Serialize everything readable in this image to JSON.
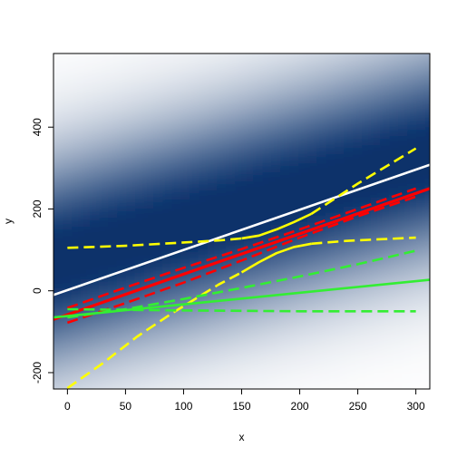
{
  "chart_data": {
    "type": "scatter",
    "title": "",
    "xlabel": "x",
    "ylabel": "y",
    "xlim": [
      -12,
      312
    ],
    "ylim": [
      -240,
      580
    ],
    "x_ticks": [
      0,
      50,
      100,
      150,
      200,
      250,
      300
    ],
    "y_ticks": [
      -200,
      0,
      200,
      400
    ],
    "grid": false,
    "legend": "none",
    "density_background": {
      "color_low": "#ffffff",
      "color_high": "#08306b",
      "trend": {
        "intercept": 200,
        "slope": 0.8
      }
    },
    "series": [
      {
        "role": "white-fit",
        "color": "#ffffff",
        "style": "solid",
        "points": [
          [
            -12,
            -10
          ],
          [
            312,
            308
          ]
        ]
      },
      {
        "role": "red-fit",
        "color": "#ff0000",
        "style": "solid",
        "points": [
          [
            -12,
            -70
          ],
          [
            312,
            250
          ]
        ]
      },
      {
        "role": "red-band-upper",
        "color": "#ff0000",
        "style": "dashed",
        "points": [
          [
            0,
            -42
          ],
          [
            50,
            8
          ],
          [
            100,
            56
          ],
          [
            150,
            102
          ],
          [
            200,
            150
          ],
          [
            250,
            200
          ],
          [
            300,
            250
          ]
        ]
      },
      {
        "role": "red-band-lower",
        "color": "#ff0000",
        "style": "dashed",
        "points": [
          [
            0,
            -78
          ],
          [
            50,
            -30
          ],
          [
            100,
            20
          ],
          [
            150,
            74
          ],
          [
            200,
            130
          ],
          [
            250,
            182
          ],
          [
            300,
            230
          ]
        ]
      },
      {
        "role": "yellow-upper",
        "color": "#ffff00",
        "style": "dashed",
        "points": [
          [
            0,
            105
          ],
          [
            50,
            110
          ],
          [
            100,
            118
          ],
          [
            130,
            123
          ],
          [
            150,
            128
          ]
        ]
      },
      {
        "role": "yellow-upper",
        "color": "#ffff00",
        "style": "solid",
        "points": [
          [
            150,
            128
          ],
          [
            165,
            135
          ],
          [
            180,
            150
          ],
          [
            195,
            168
          ],
          [
            210,
            188
          ]
        ]
      },
      {
        "role": "yellow-upper",
        "color": "#ffff00",
        "style": "dashed",
        "points": [
          [
            210,
            188
          ],
          [
            230,
            225
          ],
          [
            250,
            262
          ],
          [
            275,
            305
          ],
          [
            300,
            348
          ]
        ]
      },
      {
        "role": "yellow-lower",
        "color": "#ffff00",
        "style": "dashed",
        "points": [
          [
            0,
            -238
          ],
          [
            30,
            -178
          ],
          [
            60,
            -112
          ],
          [
            90,
            -55
          ],
          [
            110,
            -20
          ],
          [
            130,
            15
          ],
          [
            150,
            45
          ]
        ]
      },
      {
        "role": "yellow-lower",
        "color": "#ffff00",
        "style": "solid",
        "points": [
          [
            150,
            45
          ],
          [
            165,
            70
          ],
          [
            180,
            92
          ],
          [
            195,
            107
          ],
          [
            210,
            115
          ]
        ]
      },
      {
        "role": "yellow-lower",
        "color": "#ffff00",
        "style": "dashed",
        "points": [
          [
            210,
            115
          ],
          [
            240,
            122
          ],
          [
            270,
            126
          ],
          [
            300,
            130
          ]
        ]
      },
      {
        "role": "green-fit",
        "color": "#33ee33",
        "style": "solid",
        "points": [
          [
            -12,
            -65
          ],
          [
            312,
            27
          ]
        ]
      },
      {
        "role": "green-band-upper",
        "color": "#33ee33",
        "style": "dashed",
        "points": [
          [
            0,
            -65
          ],
          [
            50,
            -45
          ],
          [
            100,
            -20
          ],
          [
            150,
            7
          ],
          [
            200,
            35
          ],
          [
            250,
            65
          ],
          [
            300,
            98
          ]
        ]
      },
      {
        "role": "green-band-lower",
        "color": "#33ee33",
        "style": "dashed",
        "points": [
          [
            0,
            -45
          ],
          [
            100,
            -48
          ],
          [
            200,
            -50
          ],
          [
            300,
            -50
          ]
        ]
      }
    ]
  }
}
